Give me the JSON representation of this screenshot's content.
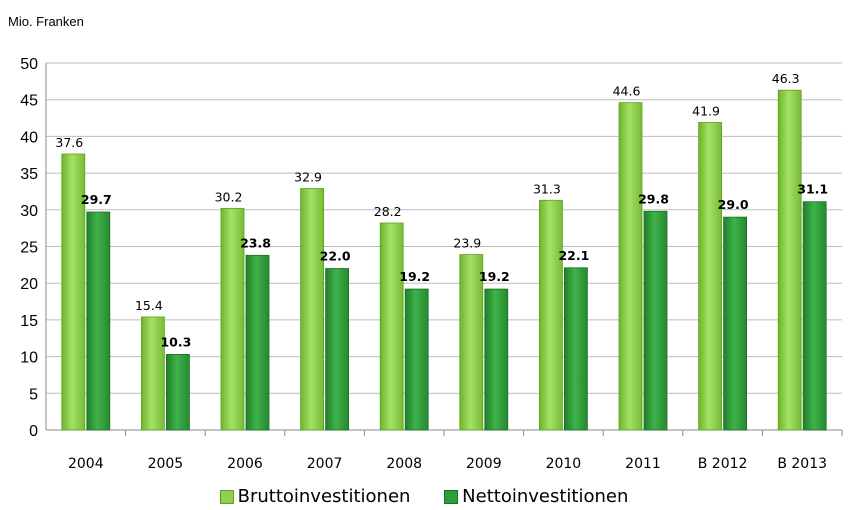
{
  "chart_data": {
    "type": "bar",
    "title": "",
    "ylabel": "Mio. Franken",
    "xlabel": "",
    "ylim": [
      0,
      50
    ],
    "yticks": [
      0,
      5,
      10,
      15,
      20,
      25,
      30,
      35,
      40,
      45,
      50
    ],
    "categories": [
      "2004",
      "2005",
      "2006",
      "2007",
      "2008",
      "2009",
      "2010",
      "2011",
      "B 2012",
      "B 2013"
    ],
    "grid": "horizontal",
    "legend": "bottom",
    "series": [
      {
        "name": "Bruttoinvestitionen",
        "color": "#8fd14f",
        "values": [
          37.6,
          15.4,
          30.2,
          32.9,
          28.2,
          23.9,
          31.3,
          44.6,
          41.9,
          46.3
        ],
        "labels": [
          "37.6",
          "15.4",
          "30.2",
          "32.9",
          "28.2",
          "23.9",
          "31.3",
          "44.6",
          "41.9",
          "46.3"
        ]
      },
      {
        "name": "Nettoinvestitionen",
        "color": "#2e9e3a",
        "values": [
          29.7,
          10.3,
          23.8,
          22.0,
          19.2,
          19.2,
          22.1,
          29.8,
          29.0,
          31.1
        ],
        "labels": [
          "29.7",
          "10.3",
          "23.8",
          "22.0",
          "19.2",
          "19.2",
          "22.1",
          "29.8",
          "29.0",
          "31.1"
        ]
      }
    ]
  }
}
